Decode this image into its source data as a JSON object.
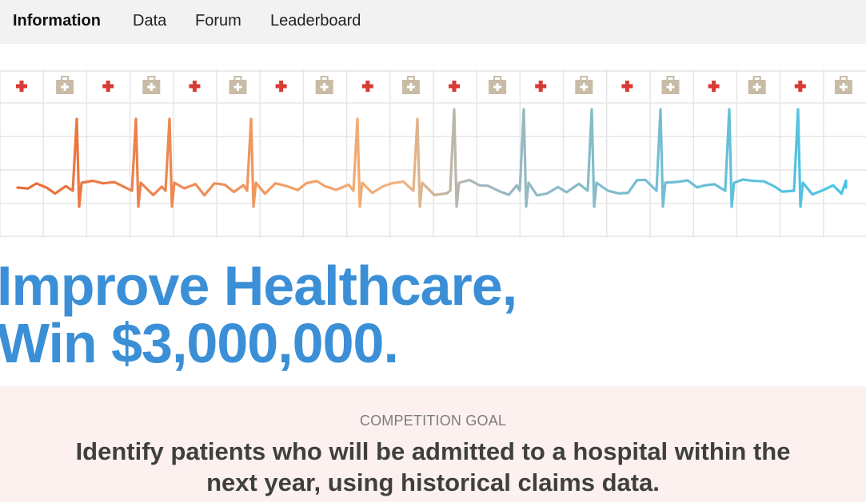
{
  "nav": {
    "tabs": [
      {
        "label": "Information",
        "active": true
      },
      {
        "label": "Data",
        "active": false
      },
      {
        "label": "Forum",
        "active": false
      },
      {
        "label": "Leaderboard",
        "active": false
      }
    ]
  },
  "banner": {
    "icons": [
      "red-cross-icon",
      "first-aid-kit-icon"
    ],
    "colors": {
      "cross": "#d83a34",
      "kit": "#c9bca6",
      "grid": "#e6e6e6",
      "pulse_start": "#e86c36",
      "pulse_mid": "#f3b27a",
      "pulse_end": "#48c4e6"
    }
  },
  "hero": {
    "line1": "Improve Healthcare,",
    "line2": "Win $3,000,000.",
    "color": "#3b8fd6"
  },
  "goal": {
    "label": "COMPETITION GOAL",
    "line1": "Identify patients who will be admitted to a hospital within the",
    "line2": "next year, using historical claims data."
  }
}
